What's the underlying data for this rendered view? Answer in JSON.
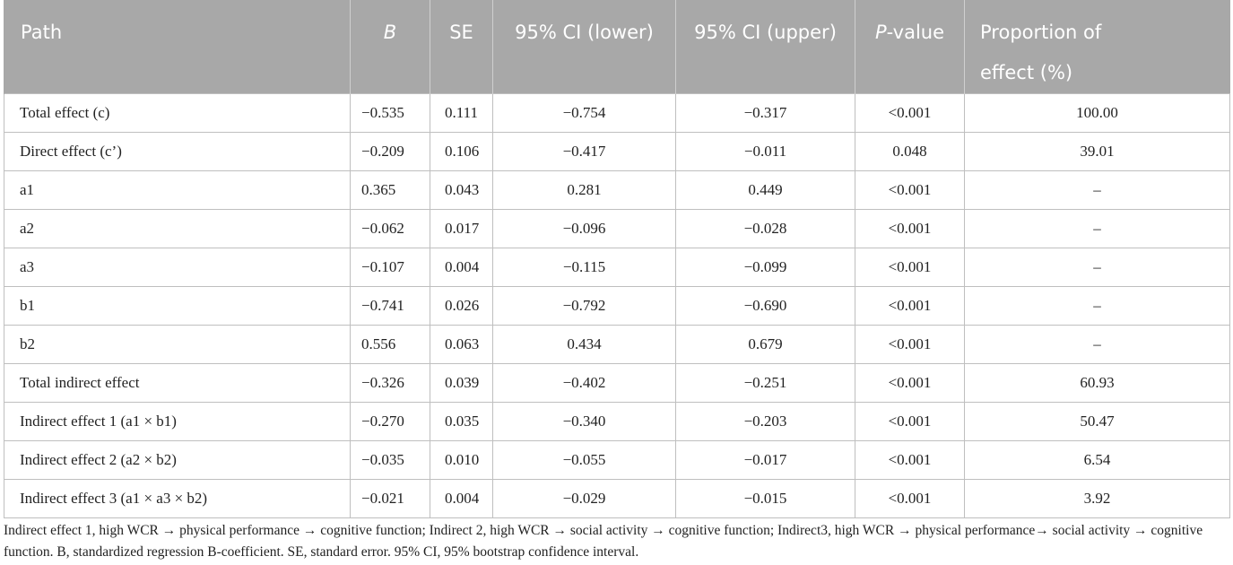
{
  "table": {
    "headers": {
      "path": "Path",
      "b": "B",
      "se": "SE",
      "ci_lower": "95% CI (lower)",
      "ci_upper": "95% CI (upper)",
      "p_italic": "P",
      "p_rest": "-value",
      "proportion": "Proportion of effect (%)"
    },
    "rows": [
      {
        "path": "Total effect (c)",
        "b": "−0.535",
        "se": "0.111",
        "lower": "−0.754",
        "upper": "−0.317",
        "p": "<0.001",
        "prop": "100.00"
      },
      {
        "path": "Direct effect (c’)",
        "b": "−0.209",
        "se": "0.106",
        "lower": "−0.417",
        "upper": "−0.011",
        "p": "0.048",
        "prop": "39.01"
      },
      {
        "path": "a1",
        "b": "0.365",
        "se": "0.043",
        "lower": "0.281",
        "upper": "0.449",
        "p": "<0.001",
        "prop": "–"
      },
      {
        "path": "a2",
        "b": "−0.062",
        "se": "0.017",
        "lower": "−0.096",
        "upper": "−0.028",
        "p": "<0.001",
        "prop": "–"
      },
      {
        "path": "a3",
        "b": "−0.107",
        "se": "0.004",
        "lower": "−0.115",
        "upper": "−0.099",
        "p": "<0.001",
        "prop": "–"
      },
      {
        "path": "b1",
        "b": "−0.741",
        "se": "0.026",
        "lower": "−0.792",
        "upper": "−0.690",
        "p": "<0.001",
        "prop": "–"
      },
      {
        "path": "b2",
        "b": "0.556",
        "se": "0.063",
        "lower": "0.434",
        "upper": "0.679",
        "p": "<0.001",
        "prop": "–"
      },
      {
        "path": "Total indirect effect",
        "b": "−0.326",
        "se": "0.039",
        "lower": "−0.402",
        "upper": "−0.251",
        "p": "<0.001",
        "prop": "60.93"
      },
      {
        "path": "Indirect effect 1 (a1 × b1)",
        "b": "−0.270",
        "se": "0.035",
        "lower": "−0.340",
        "upper": "−0.203",
        "p": "<0.001",
        "prop": "50.47"
      },
      {
        "path": "Indirect effect 2 (a2 × b2)",
        "b": "−0.035",
        "se": "0.010",
        "lower": "−0.055",
        "upper": "−0.017",
        "p": "<0.001",
        "prop": "6.54"
      },
      {
        "path": "Indirect effect 3 (a1 × a3 × b2)",
        "b": "−0.021",
        "se": "0.004",
        "lower": "−0.029",
        "upper": "−0.015",
        "p": "<0.001",
        "prop": "3.92"
      }
    ]
  },
  "footnote": "Indirect effect 1, high WCR → physical performance → cognitive function; Indirect 2, high WCR → social activity → cognitive function; Indirect3, high WCR → physical performance→ social activity → cognitive function. B, standardized regression B-coefficient. SE, standard error. 95% CI, 95% bootstrap confidence interval.",
  "colors": {
    "header_bg": "#a8a8a8",
    "header_text": "#ffffff",
    "border": "#bfbfbf"
  }
}
